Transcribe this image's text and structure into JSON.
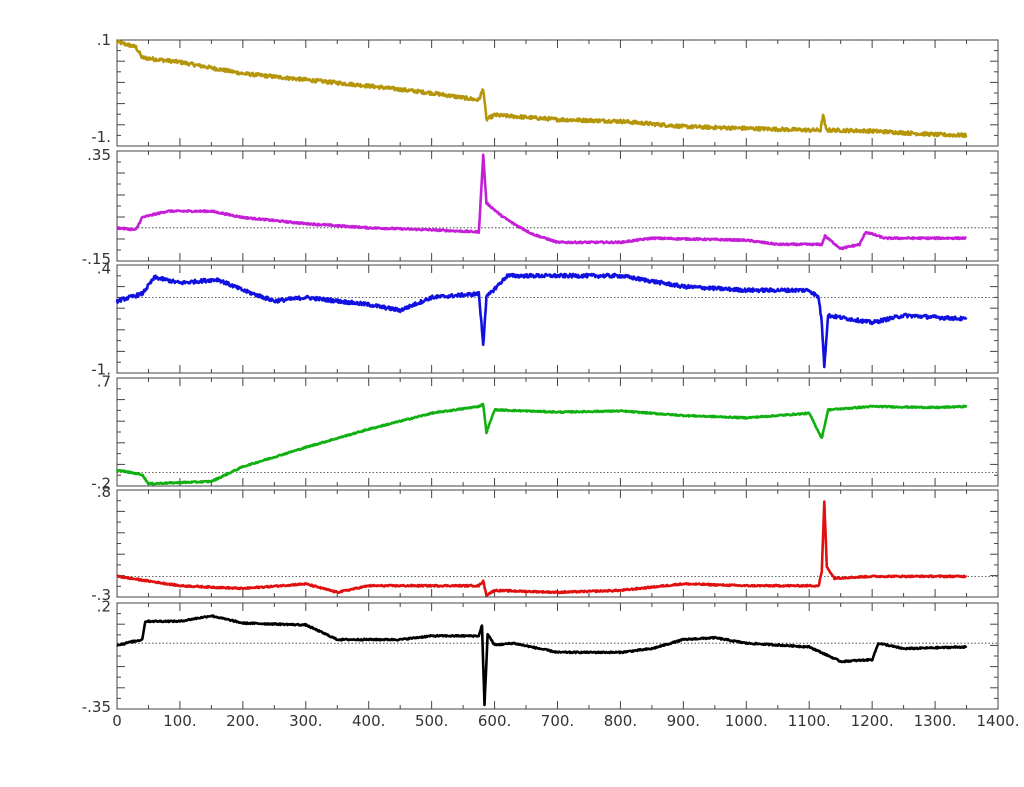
{
  "chart_data": {
    "type": "line",
    "title": "",
    "xlabel": "",
    "ylabel": "",
    "xlim": [
      0,
      1400
    ],
    "x_ticks": [
      "0",
      "100.",
      "200.",
      "300.",
      "400.",
      "500.",
      "600.",
      "700.",
      "800.",
      "900.",
      "1000.",
      "1100.",
      "1200.",
      "1300.",
      "1400."
    ],
    "grid": false,
    "panels": [
      {
        "color": "#b5960a",
        "ylim": [
          -1.1,
          0.1
        ],
        "tick_labels": [
          "-1.",
          ".1"
        ],
        "tick_values": [
          -1.0,
          0.1
        ],
        "reference_line": 0.1,
        "noise": 0.02,
        "points": [
          [
            0,
            0.08
          ],
          [
            30,
            0.02
          ],
          [
            40,
            -0.1
          ],
          [
            100,
            -0.15
          ],
          [
            200,
            -0.28
          ],
          [
            300,
            -0.35
          ],
          [
            400,
            -0.42
          ],
          [
            500,
            -0.5
          ],
          [
            575,
            -0.58
          ],
          [
            582,
            -0.45
          ],
          [
            587,
            -0.8
          ],
          [
            600,
            -0.75
          ],
          [
            700,
            -0.8
          ],
          [
            800,
            -0.82
          ],
          [
            900,
            -0.88
          ],
          [
            1000,
            -0.9
          ],
          [
            1100,
            -0.92
          ],
          [
            1118,
            -0.92
          ],
          [
            1122,
            -0.75
          ],
          [
            1127,
            -0.92
          ],
          [
            1200,
            -0.93
          ],
          [
            1300,
            -0.97
          ],
          [
            1350,
            -0.98
          ]
        ]
      },
      {
        "color": "#c41ed6",
        "ylim": [
          -0.16,
          0.37
        ],
        "tick_labels": [
          "-.15",
          ".35"
        ],
        "tick_values": [
          -0.15,
          0.35
        ],
        "reference_line": 0.0,
        "noise": 0.004,
        "points": [
          [
            0,
            0.0
          ],
          [
            30,
            -0.01
          ],
          [
            40,
            0.05
          ],
          [
            80,
            0.08
          ],
          [
            150,
            0.08
          ],
          [
            200,
            0.05
          ],
          [
            300,
            0.02
          ],
          [
            400,
            0.0
          ],
          [
            500,
            -0.01
          ],
          [
            575,
            -0.02
          ],
          [
            582,
            0.35
          ],
          [
            587,
            0.12
          ],
          [
            610,
            0.06
          ],
          [
            630,
            0.02
          ],
          [
            660,
            -0.03
          ],
          [
            700,
            -0.07
          ],
          [
            800,
            -0.07
          ],
          [
            850,
            -0.05
          ],
          [
            1000,
            -0.06
          ],
          [
            1050,
            -0.08
          ],
          [
            1120,
            -0.08
          ],
          [
            1125,
            -0.04
          ],
          [
            1150,
            -0.1
          ],
          [
            1180,
            -0.08
          ],
          [
            1190,
            -0.02
          ],
          [
            1220,
            -0.05
          ],
          [
            1300,
            -0.05
          ],
          [
            1350,
            -0.05
          ]
        ]
      },
      {
        "color": "#1010e0",
        "ylim": [
          -1.05,
          0.45
        ],
        "tick_labels": [
          "-1.",
          ".4"
        ],
        "tick_values": [
          -1.0,
          0.4
        ],
        "reference_line": 0.0,
        "noise": 0.025,
        "points": [
          [
            0,
            -0.05
          ],
          [
            40,
            0.05
          ],
          [
            60,
            0.28
          ],
          [
            100,
            0.2
          ],
          [
            160,
            0.25
          ],
          [
            200,
            0.1
          ],
          [
            250,
            -0.05
          ],
          [
            300,
            0.0
          ],
          [
            350,
            -0.05
          ],
          [
            400,
            -0.1
          ],
          [
            450,
            -0.18
          ],
          [
            500,
            0.0
          ],
          [
            575,
            0.05
          ],
          [
            582,
            -0.65
          ],
          [
            587,
            0.0
          ],
          [
            620,
            0.3
          ],
          [
            700,
            0.3
          ],
          [
            800,
            0.3
          ],
          [
            900,
            0.15
          ],
          [
            1000,
            0.1
          ],
          [
            1100,
            0.1
          ],
          [
            1115,
            0.0
          ],
          [
            1120,
            -0.35
          ],
          [
            1124,
            -0.95
          ],
          [
            1130,
            -0.25
          ],
          [
            1200,
            -0.35
          ],
          [
            1250,
            -0.25
          ],
          [
            1350,
            -0.3
          ]
        ]
      },
      {
        "color": "#10b010",
        "ylim": [
          -0.22,
          0.73
        ],
        "tick_labels": [
          "-.2",
          ".7"
        ],
        "tick_values": [
          -0.2,
          0.7
        ],
        "reference_line": -0.1,
        "noise": 0.006,
        "points": [
          [
            0,
            -0.08
          ],
          [
            40,
            -0.12
          ],
          [
            50,
            -0.2
          ],
          [
            150,
            -0.18
          ],
          [
            200,
            -0.05
          ],
          [
            300,
            0.12
          ],
          [
            400,
            0.28
          ],
          [
            500,
            0.42
          ],
          [
            575,
            0.48
          ],
          [
            582,
            0.5
          ],
          [
            587,
            0.25
          ],
          [
            600,
            0.45
          ],
          [
            700,
            0.43
          ],
          [
            800,
            0.44
          ],
          [
            900,
            0.4
          ],
          [
            1000,
            0.38
          ],
          [
            1100,
            0.42
          ],
          [
            1120,
            0.2
          ],
          [
            1130,
            0.45
          ],
          [
            1200,
            0.48
          ],
          [
            1300,
            0.47
          ],
          [
            1350,
            0.48
          ]
        ]
      },
      {
        "color": "#e01010",
        "ylim": [
          -0.32,
          0.82
        ],
        "tick_labels": [
          "-.3",
          ".8"
        ],
        "tick_values": [
          -0.3,
          0.8
        ],
        "reference_line": -0.1,
        "noise": 0.008,
        "points": [
          [
            0,
            -0.1
          ],
          [
            50,
            -0.15
          ],
          [
            100,
            -0.2
          ],
          [
            200,
            -0.23
          ],
          [
            300,
            -0.18
          ],
          [
            350,
            -0.27
          ],
          [
            400,
            -0.2
          ],
          [
            500,
            -0.2
          ],
          [
            575,
            -0.2
          ],
          [
            582,
            -0.15
          ],
          [
            587,
            -0.3
          ],
          [
            600,
            -0.25
          ],
          [
            700,
            -0.27
          ],
          [
            800,
            -0.25
          ],
          [
            900,
            -0.18
          ],
          [
            1000,
            -0.2
          ],
          [
            1100,
            -0.2
          ],
          [
            1115,
            -0.2
          ],
          [
            1120,
            -0.05
          ],
          [
            1124,
            0.7
          ],
          [
            1128,
            0.0
          ],
          [
            1140,
            -0.12
          ],
          [
            1200,
            -0.1
          ],
          [
            1350,
            -0.1
          ]
        ]
      },
      {
        "color": "#000000",
        "ylim": [
          -0.36,
          0.22
        ],
        "tick_labels": [
          "-.35",
          ".2"
        ],
        "tick_values": [
          -0.35,
          0.2
        ],
        "reference_line": 0.0,
        "noise": 0.004,
        "points": [
          [
            0,
            -0.01
          ],
          [
            40,
            0.02
          ],
          [
            45,
            0.12
          ],
          [
            100,
            0.12
          ],
          [
            150,
            0.15
          ],
          [
            200,
            0.11
          ],
          [
            300,
            0.1
          ],
          [
            350,
            0.02
          ],
          [
            400,
            0.02
          ],
          [
            450,
            0.02
          ],
          [
            500,
            0.04
          ],
          [
            575,
            0.04
          ],
          [
            580,
            0.1
          ],
          [
            584,
            -0.34
          ],
          [
            589,
            0.05
          ],
          [
            600,
            -0.01
          ],
          [
            630,
            0.0
          ],
          [
            700,
            -0.05
          ],
          [
            800,
            -0.05
          ],
          [
            850,
            -0.03
          ],
          [
            900,
            0.02
          ],
          [
            950,
            0.03
          ],
          [
            1000,
            0.0
          ],
          [
            1100,
            -0.02
          ],
          [
            1150,
            -0.1
          ],
          [
            1200,
            -0.09
          ],
          [
            1210,
            0.0
          ],
          [
            1250,
            -0.03
          ],
          [
            1350,
            -0.02
          ]
        ]
      }
    ]
  }
}
